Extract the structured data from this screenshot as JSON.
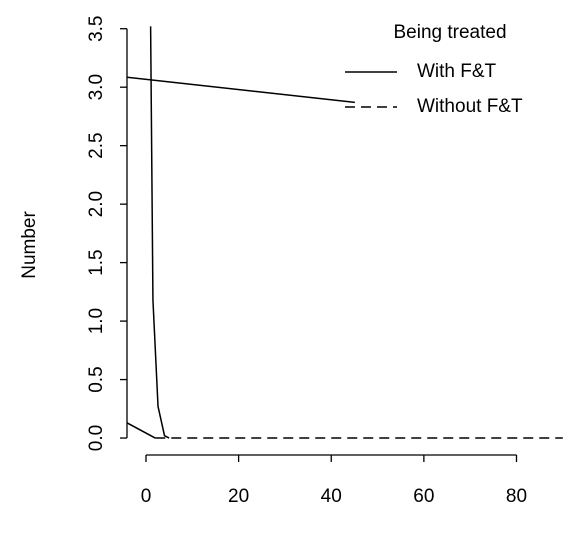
{
  "chart_data": {
    "type": "line",
    "y_label": "Number",
    "legend_title": "Being treated",
    "legend_position": "top-right",
    "xlim": [
      -4.1,
      92.2
    ],
    "ylim": [
      -0.145,
      3.66
    ],
    "xticks": [
      0,
      20,
      40,
      60,
      80
    ],
    "yticks": [
      {
        "value": 0,
        "label": "0.0"
      },
      {
        "value": 0.5,
        "label": "0.5"
      },
      {
        "value": 1,
        "label": "1.0"
      },
      {
        "value": 1.5,
        "label": "1.5"
      },
      {
        "value": 2,
        "label": "2.0"
      },
      {
        "value": 2.5,
        "label": "2.5"
      },
      {
        "value": 3,
        "label": "3.0"
      },
      {
        "value": 3.5,
        "label": "3.5"
      }
    ],
    "series": [
      {
        "name": "With F&T",
        "color": "#000000",
        "dash": "solid",
        "x": [
          -4.1,
          45.1,
          null,
          1,
          1.5,
          2.6,
          4,
          5,
          null,
          -4.1,
          2
        ],
        "values": [
          3.085,
          2.87,
          null,
          3.52,
          1.18,
          0.27,
          0.02,
          0,
          null,
          0.13,
          0
        ]
      },
      {
        "name": "Without F&T",
        "color": "#000000",
        "dash": "dashed",
        "x": [
          2,
          90
        ],
        "values": [
          0,
          0
        ]
      }
    ]
  }
}
